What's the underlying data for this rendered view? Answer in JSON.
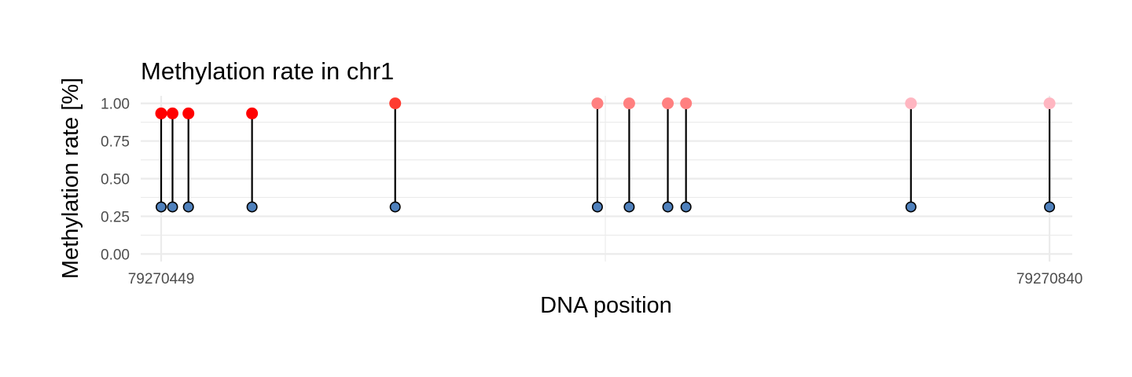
{
  "chart_data": {
    "type": "lollipop",
    "title": "Methylation rate in chr1",
    "xlabel": "DNA position",
    "ylabel": "Methylation rate [%]",
    "xlim": [
      79270440,
      79270850
    ],
    "ylim": [
      -0.05,
      1.05
    ],
    "x_ticks": [
      79270449,
      79270840
    ],
    "x_tick_labels": [
      "79270449",
      "79270840"
    ],
    "y_ticks": [
      0,
      0.25,
      0.5,
      0.75,
      1.0
    ],
    "y_tick_labels": [
      "0.00",
      "0.25",
      "0.50",
      "0.75",
      "1.00"
    ],
    "grid": true,
    "stem_base": 0.3125,
    "base_point_color": "#4F81BD",
    "color_scale": {
      "low": "#FFB6C1",
      "high": "#FF0000"
    },
    "points": [
      {
        "x": 79270449,
        "y": 0.9333,
        "color": "#FF0000"
      },
      {
        "x": 79270454,
        "y": 0.9333,
        "color": "#FF0000"
      },
      {
        "x": 79270461,
        "y": 0.9333,
        "color": "#FF0000"
      },
      {
        "x": 79270489,
        "y": 0.9333,
        "color": "#FF0000"
      },
      {
        "x": 79270552,
        "y": 1.0,
        "color": "#FF3B30"
      },
      {
        "x": 79270641,
        "y": 1.0,
        "color": "#FF8080"
      },
      {
        "x": 79270655,
        "y": 1.0,
        "color": "#FF8080"
      },
      {
        "x": 79270672,
        "y": 1.0,
        "color": "#FF8080"
      },
      {
        "x": 79270680,
        "y": 1.0,
        "color": "#FF8080"
      },
      {
        "x": 79270779,
        "y": 1.0,
        "color": "#FFB6C1"
      },
      {
        "x": 79270840,
        "y": 1.0,
        "color": "#FFB6C1"
      }
    ]
  }
}
